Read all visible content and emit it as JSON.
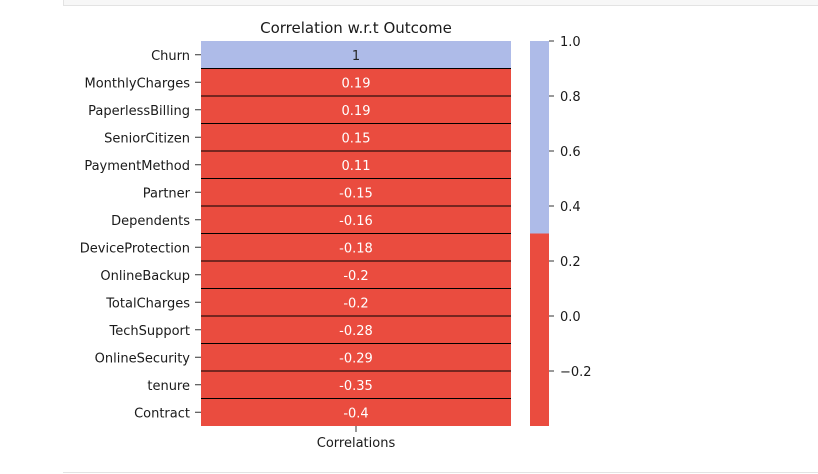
{
  "chart_data": {
    "type": "heatmap",
    "title": "Correlation w.r.t Outcome",
    "xlabel": "",
    "ylabel": "",
    "columns": [
      "Correlations"
    ],
    "rows": [
      "Churn",
      "MonthlyCharges",
      "PaperlessBilling",
      "SeniorCitizen",
      "PaymentMethod",
      "Partner",
      "Dependents",
      "DeviceProtection",
      "OnlineBackup",
      "TotalCharges",
      "TechSupport",
      "OnlineSecurity",
      "tenure",
      "Contract"
    ],
    "values": [
      1,
      0.19,
      0.19,
      0.15,
      0.11,
      -0.15,
      -0.16,
      -0.18,
      -0.2,
      -0.2,
      -0.28,
      -0.29,
      -0.35,
      -0.4
    ],
    "value_labels": [
      "1",
      "0.19",
      "0.19",
      "0.15",
      "0.11",
      "-0.15",
      "-0.16",
      "-0.18",
      "-0.2",
      "-0.2",
      "-0.28",
      "-0.29",
      "-0.35",
      "-0.4"
    ],
    "colormap": {
      "low_color": "#ea4c3f",
      "high_color": "#aebbe8",
      "threshold": 0.3
    },
    "colorbar": {
      "range": [
        -0.4,
        1.0
      ],
      "ticks": [
        1.0,
        0.8,
        0.6,
        0.4,
        0.2,
        0.0,
        -0.2
      ],
      "tick_labels": [
        "1.0",
        "0.8",
        "0.6",
        "0.4",
        "0.2",
        "0.0",
        "−0.2"
      ],
      "placement": "right"
    },
    "grid": false
  }
}
